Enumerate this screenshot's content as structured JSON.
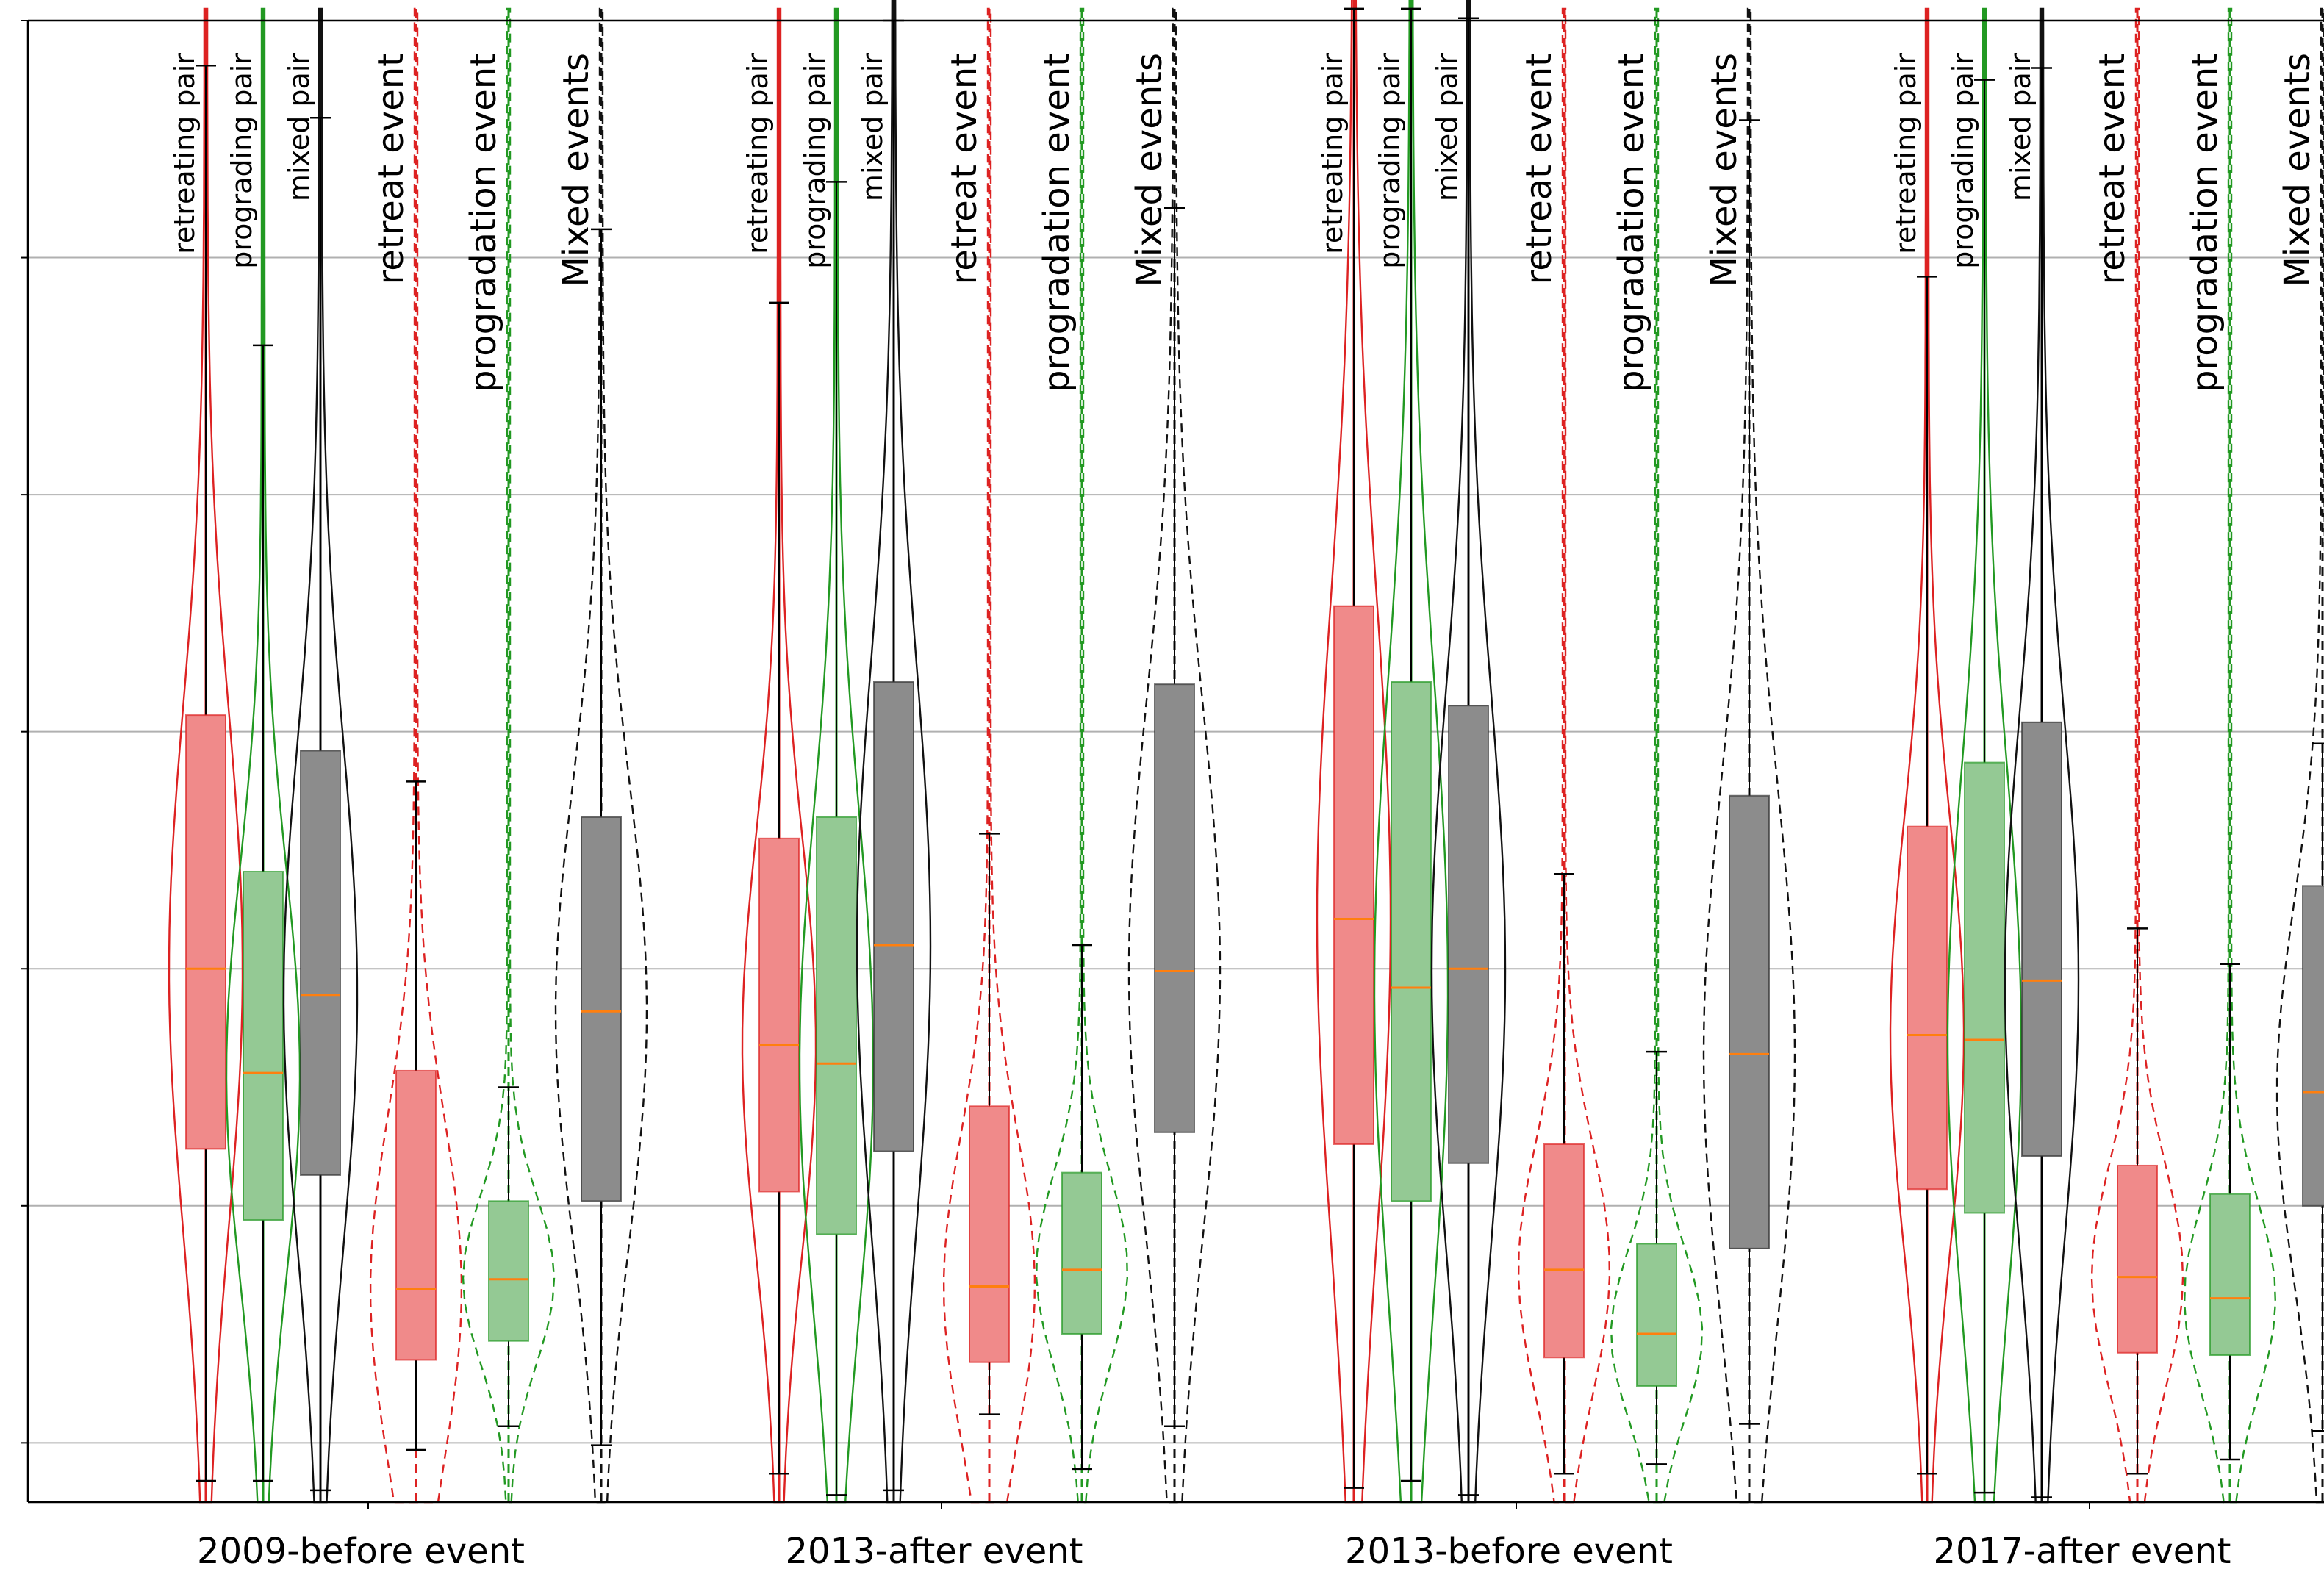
{
  "chart_data": {
    "type": "violin+box",
    "title": "",
    "xlabel": "",
    "ylabel": "",
    "ylim": [
      0,
      6.25
    ],
    "yticks": [
      0.25,
      1.25,
      2.25,
      3.25,
      4.25,
      5.25,
      6.25
    ],
    "ytick_labels_visible": false,
    "grid": "horizontal",
    "colors": {
      "retreat": "#dd2222",
      "prograde": "#229922",
      "mixed": "#111111",
      "median": "#ff7f0e",
      "retreat_fill": "#f08a8a",
      "prograde_fill": "#94c994",
      "mixed_fill": "#8c8c8c"
    },
    "groups": [
      {
        "name": "2009-before event",
        "series": [
          {
            "label": "retreating pair",
            "kind": "retreat",
            "dashed": false,
            "q1": 1.49,
            "median": 2.25,
            "q3": 3.32,
            "whisker_low": 0.09,
            "whisker_high": 6.06,
            "max": 6.3
          },
          {
            "label": "prograding pair",
            "kind": "prograde",
            "dashed": false,
            "q1": 1.19,
            "median": 1.81,
            "q3": 2.66,
            "whisker_low": 0.09,
            "whisker_high": 4.88,
            "max": 6.3
          },
          {
            "label": "mixed pair",
            "kind": "mixed",
            "dashed": false,
            "q1": 1.38,
            "median": 2.14,
            "q3": 3.17,
            "whisker_low": 0.05,
            "whisker_high": 5.84,
            "max": 6.3
          },
          {
            "label": "retreat event",
            "kind": "retreat",
            "dashed": true,
            "q1": 0.6,
            "median": 0.9,
            "q3": 1.82,
            "whisker_low": 0.22,
            "whisker_high": 3.04,
            "max": 6.3
          },
          {
            "label": "progradation event",
            "kind": "prograde",
            "dashed": true,
            "q1": 0.68,
            "median": 0.94,
            "q3": 1.27,
            "whisker_low": 0.32,
            "whisker_high": 1.75,
            "max": 6.3
          },
          {
            "label": "Mixed events",
            "kind": "mixed",
            "dashed": true,
            "q1": 1.27,
            "median": 2.07,
            "q3": 2.89,
            "whisker_low": 0.24,
            "whisker_high": 5.37,
            "max": 6.3
          }
        ]
      },
      {
        "name": "2013-after event",
        "series": [
          {
            "label": "retreating pair",
            "kind": "retreat",
            "dashed": false,
            "q1": 1.31,
            "median": 1.93,
            "q3": 2.8,
            "whisker_low": 0.12,
            "whisker_high": 5.06,
            "max": 6.3
          },
          {
            "label": "prograding pair",
            "kind": "prograde",
            "dashed": false,
            "q1": 1.13,
            "median": 1.85,
            "q3": 2.89,
            "whisker_low": 0.03,
            "whisker_high": 5.57,
            "max": 6.3
          },
          {
            "label": "mixed pair",
            "kind": "mixed",
            "dashed": false,
            "q1": 1.48,
            "median": 2.35,
            "q3": 3.46,
            "whisker_low": 0.05,
            "whisker_high": 6.25,
            "max": 6.4
          },
          {
            "label": "retreat event",
            "kind": "retreat",
            "dashed": true,
            "q1": 0.59,
            "median": 0.91,
            "q3": 1.67,
            "whisker_low": 0.37,
            "whisker_high": 2.82,
            "max": 6.3
          },
          {
            "label": "progradation event",
            "kind": "prograde",
            "dashed": true,
            "q1": 0.71,
            "median": 0.98,
            "q3": 1.39,
            "whisker_low": 0.14,
            "whisker_high": 2.35,
            "max": 6.3
          },
          {
            "label": "Mixed events",
            "kind": "mixed",
            "dashed": true,
            "q1": 1.56,
            "median": 2.24,
            "q3": 3.45,
            "whisker_low": 0.32,
            "whisker_high": 5.46,
            "max": 6.3
          }
        ]
      },
      {
        "name": "2013-before event",
        "series": [
          {
            "label": "retreating pair",
            "kind": "retreat",
            "dashed": false,
            "q1": 1.51,
            "median": 2.46,
            "q3": 3.78,
            "whisker_low": 0.06,
            "whisker_high": 6.3,
            "max": 6.4
          },
          {
            "label": "prograding pair",
            "kind": "prograde",
            "dashed": false,
            "q1": 1.27,
            "median": 2.17,
            "q3": 3.46,
            "whisker_low": 0.09,
            "whisker_high": 6.3,
            "max": 6.4
          },
          {
            "label": "mixed pair",
            "kind": "mixed",
            "dashed": false,
            "q1": 1.43,
            "median": 2.25,
            "q3": 3.36,
            "whisker_low": 0.03,
            "whisker_high": 6.26,
            "max": 6.4
          },
          {
            "label": "retreat event",
            "kind": "retreat",
            "dashed": true,
            "q1": 0.61,
            "median": 0.98,
            "q3": 1.51,
            "whisker_low": 0.12,
            "whisker_high": 2.65,
            "max": 6.3
          },
          {
            "label": "progradation event",
            "kind": "prograde",
            "dashed": true,
            "q1": 0.49,
            "median": 0.71,
            "q3": 1.09,
            "whisker_low": 0.16,
            "whisker_high": 1.9,
            "max": 6.3
          },
          {
            "label": "Mixed events",
            "kind": "mixed",
            "dashed": true,
            "q1": 1.07,
            "median": 1.89,
            "q3": 2.98,
            "whisker_low": 0.33,
            "whisker_high": 5.83,
            "max": 6.3
          }
        ]
      },
      {
        "name": "2017-after event",
        "series": [
          {
            "label": "retreating pair",
            "kind": "retreat",
            "dashed": false,
            "q1": 1.32,
            "median": 1.97,
            "q3": 2.85,
            "whisker_low": 0.12,
            "whisker_high": 5.17,
            "max": 6.3
          },
          {
            "label": "prograding pair",
            "kind": "prograde",
            "dashed": false,
            "q1": 1.22,
            "median": 1.95,
            "q3": 3.12,
            "whisker_low": 0.04,
            "whisker_high": 6.0,
            "max": 6.3
          },
          {
            "label": "mixed pair",
            "kind": "mixed",
            "dashed": false,
            "q1": 1.46,
            "median": 2.2,
            "q3": 3.29,
            "whisker_low": 0.02,
            "whisker_high": 6.05,
            "max": 6.3
          },
          {
            "label": "retreat event",
            "kind": "retreat",
            "dashed": true,
            "q1": 0.63,
            "median": 0.95,
            "q3": 1.42,
            "whisker_low": 0.12,
            "whisker_high": 2.42,
            "max": 6.3
          },
          {
            "label": "progradation event",
            "kind": "prograde",
            "dashed": true,
            "q1": 0.62,
            "median": 0.86,
            "q3": 1.3,
            "whisker_low": 0.18,
            "whisker_high": 2.27,
            "max": 6.3
          },
          {
            "label": "Mixed events",
            "kind": "mixed",
            "dashed": true,
            "q1": 1.25,
            "median": 1.73,
            "q3": 2.6,
            "whisker_low": 0.3,
            "whisker_high": 3.2,
            "max": 6.3
          }
        ]
      }
    ]
  }
}
